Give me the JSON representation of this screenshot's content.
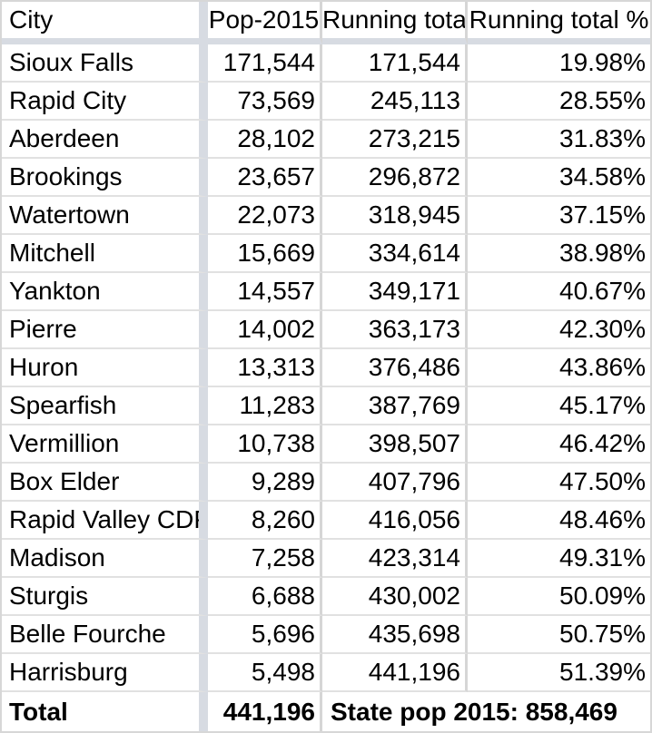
{
  "colors": {
    "background": "#ffffff",
    "text": "#000000",
    "frozen_divider_band": "#d7dbe2",
    "gridline_horizontal": "#e1e1e1",
    "gridline_vertical": "#d6d6d6",
    "outer_border": "#d7d7d7"
  },
  "table": {
    "columns": [
      {
        "label": "City"
      },
      {
        "label": "Pop-2015"
      },
      {
        "label": "Running total"
      },
      {
        "label": "Running total %"
      }
    ],
    "rows": [
      {
        "city": "Sioux Falls",
        "pop": "171,544",
        "running": "171,544",
        "pct": "19.98%"
      },
      {
        "city": "Rapid City",
        "pop": "73,569",
        "running": "245,113",
        "pct": "28.55%"
      },
      {
        "city": "Aberdeen",
        "pop": "28,102",
        "running": "273,215",
        "pct": "31.83%"
      },
      {
        "city": "Brookings",
        "pop": "23,657",
        "running": "296,872",
        "pct": "34.58%"
      },
      {
        "city": "Watertown",
        "pop": "22,073",
        "running": "318,945",
        "pct": "37.15%"
      },
      {
        "city": "Mitchell",
        "pop": "15,669",
        "running": "334,614",
        "pct": "38.98%"
      },
      {
        "city": "Yankton",
        "pop": "14,557",
        "running": "349,171",
        "pct": "40.67%"
      },
      {
        "city": "Pierre",
        "pop": "14,002",
        "running": "363,173",
        "pct": "42.30%"
      },
      {
        "city": "Huron",
        "pop": "13,313",
        "running": "376,486",
        "pct": "43.86%"
      },
      {
        "city": "Spearfish",
        "pop": "11,283",
        "running": "387,769",
        "pct": "45.17%"
      },
      {
        "city": "Vermillion",
        "pop": "10,738",
        "running": "398,507",
        "pct": "46.42%"
      },
      {
        "city": "Box Elder",
        "pop": "9,289",
        "running": "407,796",
        "pct": "47.50%"
      },
      {
        "city": "Rapid Valley CDP",
        "pop": "8,260",
        "running": "416,056",
        "pct": "48.46%"
      },
      {
        "city": "Madison",
        "pop": "7,258",
        "running": "423,314",
        "pct": "49.31%"
      },
      {
        "city": "Sturgis",
        "pop": "6,688",
        "running": "430,002",
        "pct": "50.09%"
      },
      {
        "city": "Belle Fourche",
        "pop": "5,696",
        "running": "435,698",
        "pct": "50.75%"
      },
      {
        "city": "Harrisburg",
        "pop": "5,498",
        "running": "441,196",
        "pct": "51.39%"
      }
    ],
    "total": {
      "label": "Total",
      "pop": "441,196",
      "note": "State pop 2015: 858,469"
    }
  }
}
